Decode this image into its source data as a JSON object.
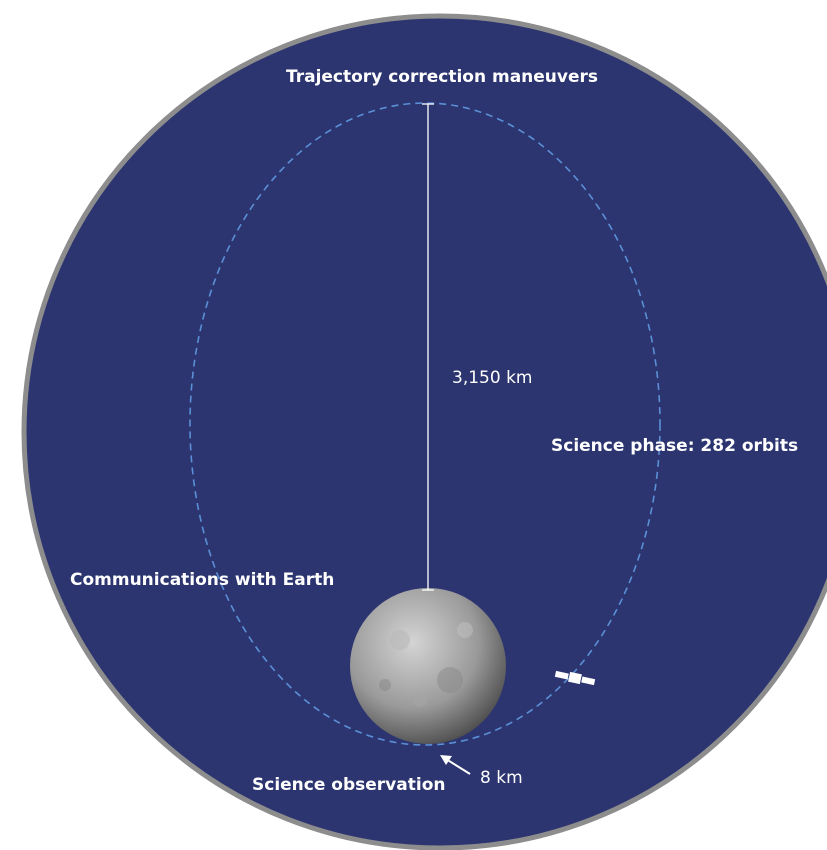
{
  "labels": {
    "top": "Trajectory correction maneuvers",
    "altitude_high": "3,150 km",
    "phase": "Science phase: 282 orbits",
    "communications": "Communications with Earth",
    "observation": "Science observation",
    "altitude_low": "8 km"
  }
}
